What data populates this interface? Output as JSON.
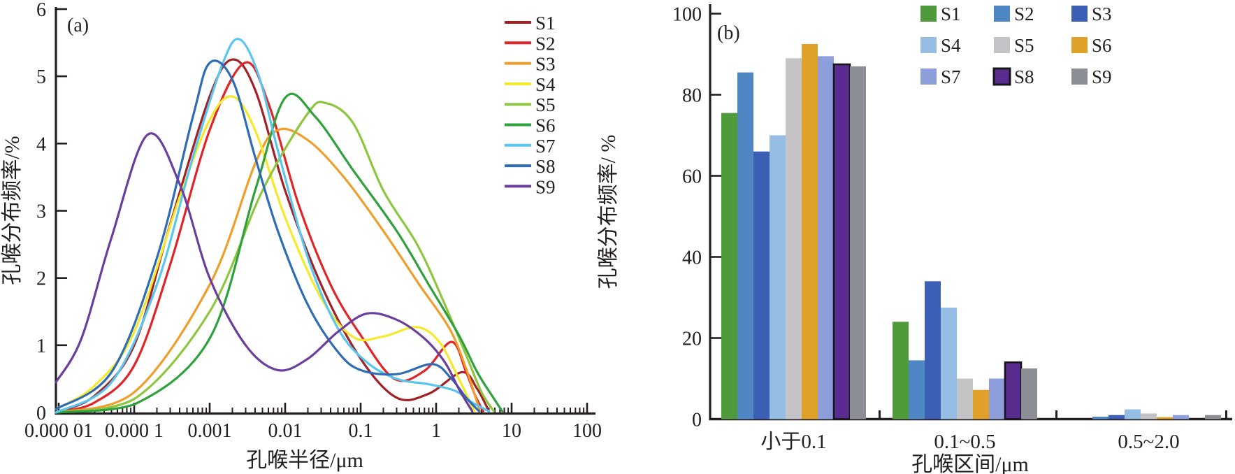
{
  "figure": {
    "background": "#ffffff",
    "axis_color": "#231f20"
  },
  "chart_data": [
    {
      "type": "line",
      "tag": "(a)",
      "xlabel": "孔喉半径/μm",
      "ylabel": "孔喉分布频率/%",
      "xscale": "log",
      "xlim": [
        9.2e-06,
        100
      ],
      "ylim": [
        0,
        6
      ],
      "yticks": [
        0,
        1,
        2,
        3,
        4,
        5,
        6
      ],
      "xtick_values": [
        1e-05,
        0.0001,
        0.001,
        0.01,
        0.1,
        1,
        10,
        100
      ],
      "xtick_labels": [
        "0.000 01",
        "0.000 1",
        "0.001",
        "0.01",
        "0.1",
        "1",
        "10",
        "100"
      ],
      "grid": false,
      "legend_position": "top-right-inside",
      "series": [
        {
          "name": "S1",
          "color": "#a32126",
          "points": [
            [
              9.2e-06,
              0
            ],
            [
              3e-05,
              0.25
            ],
            [
              0.0001,
              1.0
            ],
            [
              0.0003,
              2.8
            ],
            [
              0.001,
              4.7
            ],
            [
              0.002,
              5.25
            ],
            [
              0.004,
              4.8
            ],
            [
              0.01,
              3.3
            ],
            [
              0.03,
              1.9
            ],
            [
              0.1,
              0.8
            ],
            [
              0.3,
              0.22
            ],
            [
              0.8,
              0.28
            ],
            [
              2.2,
              0.6
            ],
            [
              3.5,
              0.35
            ],
            [
              5,
              0.02
            ]
          ]
        },
        {
          "name": "S2",
          "color": "#e02427",
          "points": [
            [
              9.2e-06,
              0
            ],
            [
              3e-05,
              0.15
            ],
            [
              0.0001,
              0.7
            ],
            [
              0.0003,
              2.2
            ],
            [
              0.001,
              4.2
            ],
            [
              0.0029,
              5.2
            ],
            [
              0.006,
              4.6
            ],
            [
              0.015,
              3.1
            ],
            [
              0.04,
              1.9
            ],
            [
              0.1,
              1.15
            ],
            [
              0.28,
              0.5
            ],
            [
              0.7,
              0.62
            ],
            [
              1.6,
              1.05
            ],
            [
              2.5,
              0.6
            ],
            [
              3.3,
              0.25
            ],
            [
              4.2,
              0.02
            ]
          ]
        },
        {
          "name": "S3",
          "color": "#f09e2b",
          "points": [
            [
              9.2e-06,
              0
            ],
            [
              0.0001,
              0.3
            ],
            [
              0.001,
              1.9
            ],
            [
              0.004,
              3.7
            ],
            [
              0.008,
              4.2
            ],
            [
              0.02,
              4.05
            ],
            [
              0.06,
              3.5
            ],
            [
              0.2,
              2.7
            ],
            [
              0.6,
              1.9
            ],
            [
              1.5,
              1.25
            ],
            [
              2.5,
              0.65
            ],
            [
              3.8,
              0.02
            ]
          ]
        },
        {
          "name": "S4",
          "color": "#f5e92b",
          "points": [
            [
              9.2e-06,
              0.05
            ],
            [
              3e-05,
              0.4
            ],
            [
              0.0001,
              1.2
            ],
            [
              0.0004,
              3.2
            ],
            [
              0.001,
              4.35
            ],
            [
              0.002,
              4.7
            ],
            [
              0.004,
              4.2
            ],
            [
              0.01,
              2.9
            ],
            [
              0.03,
              1.7
            ],
            [
              0.08,
              1.12
            ],
            [
              0.2,
              1.13
            ],
            [
              0.55,
              1.27
            ],
            [
              1.1,
              1.05
            ],
            [
              2,
              0.5
            ],
            [
              3.2,
              0.02
            ]
          ]
        },
        {
          "name": "S5",
          "color": "#8dc63f",
          "points": [
            [
              9.2e-06,
              0
            ],
            [
              0.0001,
              0.2
            ],
            [
              0.001,
              1.5
            ],
            [
              0.005,
              3.3
            ],
            [
              0.02,
              4.45
            ],
            [
              0.035,
              4.6
            ],
            [
              0.08,
              4.3
            ],
            [
              0.2,
              3.3
            ],
            [
              0.56,
              2.5
            ],
            [
              1.2,
              1.7
            ],
            [
              2.5,
              0.85
            ],
            [
              4,
              0.3
            ],
            [
              5.8,
              0.02
            ]
          ]
        },
        {
          "name": "S6",
          "color": "#2fa13c",
          "points": [
            [
              9.2e-06,
              0
            ],
            [
              0.0001,
              0.12
            ],
            [
              0.001,
              1.1
            ],
            [
              0.004,
              3.3
            ],
            [
              0.01,
              4.68
            ],
            [
              0.025,
              4.4
            ],
            [
              0.08,
              3.6
            ],
            [
              0.3,
              2.7
            ],
            [
              0.8,
              1.9
            ],
            [
              2,
              1.15
            ],
            [
              3.5,
              0.6
            ],
            [
              5.5,
              0.25
            ],
            [
              7.5,
              0.02
            ]
          ]
        },
        {
          "name": "S7",
          "color": "#58c6ef",
          "points": [
            [
              9.2e-06,
              0
            ],
            [
              5e-05,
              0.45
            ],
            [
              0.0002,
              1.9
            ],
            [
              0.0006,
              3.8
            ],
            [
              0.0015,
              5.2
            ],
            [
              0.0025,
              5.55
            ],
            [
              0.0045,
              5.0
            ],
            [
              0.008,
              3.9
            ],
            [
              0.02,
              2.3
            ],
            [
              0.05,
              1.25
            ],
            [
              0.12,
              0.75
            ],
            [
              0.3,
              0.5
            ],
            [
              0.8,
              0.42
            ],
            [
              1.8,
              0.32
            ],
            [
              3,
              0.15
            ],
            [
              5,
              0.02
            ]
          ]
        },
        {
          "name": "S8",
          "color": "#2e6cb6",
          "points": [
            [
              9.2e-06,
              0.05
            ],
            [
              5e-05,
              0.6
            ],
            [
              0.0002,
              2.3
            ],
            [
              0.0006,
              4.4
            ],
            [
              0.001,
              5.2
            ],
            [
              0.002,
              4.95
            ],
            [
              0.004,
              3.8
            ],
            [
              0.008,
              2.7
            ],
            [
              0.02,
              1.6
            ],
            [
              0.05,
              0.9
            ],
            [
              0.1,
              0.63
            ],
            [
              0.3,
              0.57
            ],
            [
              0.9,
              0.72
            ],
            [
              1.6,
              0.5
            ],
            [
              2.5,
              0.22
            ],
            [
              3.7,
              0.02
            ]
          ]
        },
        {
          "name": "S9",
          "color": "#6a3e9d",
          "points": [
            [
              9.2e-06,
              0.45
            ],
            [
              2e-05,
              1.1
            ],
            [
              5e-05,
              2.6
            ],
            [
              0.00015,
              4.13
            ],
            [
              0.0004,
              3.4
            ],
            [
              0.001,
              2.0
            ],
            [
              0.003,
              1.0
            ],
            [
              0.008,
              0.63
            ],
            [
              0.02,
              0.8
            ],
            [
              0.05,
              1.2
            ],
            [
              0.12,
              1.47
            ],
            [
              0.3,
              1.38
            ],
            [
              0.7,
              1.1
            ],
            [
              1.3,
              0.75
            ],
            [
              2,
              0.35
            ],
            [
              3,
              0.02
            ]
          ]
        }
      ]
    },
    {
      "type": "bar",
      "tag": "(b)",
      "xlabel": "孔喉区间/μm",
      "ylabel": "孔喉分布频率/ %",
      "ylim": [
        0,
        100
      ],
      "yticks": [
        0,
        20,
        40,
        60,
        80,
        100
      ],
      "categories": [
        "小于0.1",
        "0.1~0.5",
        "0.5~2.0"
      ],
      "grid": false,
      "legend_position": "top-inside-3x3",
      "series": [
        {
          "name": "S1",
          "color": "#4f9a3b",
          "values": [
            75.5,
            24,
            0.3
          ]
        },
        {
          "name": "S2",
          "color": "#4e87c4",
          "values": [
            85.5,
            14.5,
            0.6
          ]
        },
        {
          "name": "S3",
          "color": "#3b5fb4",
          "values": [
            66,
            34,
            1.0
          ]
        },
        {
          "name": "S4",
          "color": "#96bee5",
          "values": [
            70,
            27.5,
            2.4
          ]
        },
        {
          "name": "S5",
          "color": "#c4c4c6",
          "values": [
            89,
            10,
            1.4
          ]
        },
        {
          "name": "S6",
          "color": "#dfa127",
          "values": [
            92.5,
            7.2,
            0.5
          ]
        },
        {
          "name": "S7",
          "color": "#8d9edb",
          "values": [
            89.5,
            10,
            1.0
          ]
        },
        {
          "name": "S8",
          "color": "#5b2c90",
          "outline": "#161616",
          "values": [
            87.5,
            14,
            0.2
          ]
        },
        {
          "name": "S9",
          "color": "#8b8f95",
          "values": [
            87,
            12.5,
            1.0
          ]
        }
      ]
    }
  ]
}
